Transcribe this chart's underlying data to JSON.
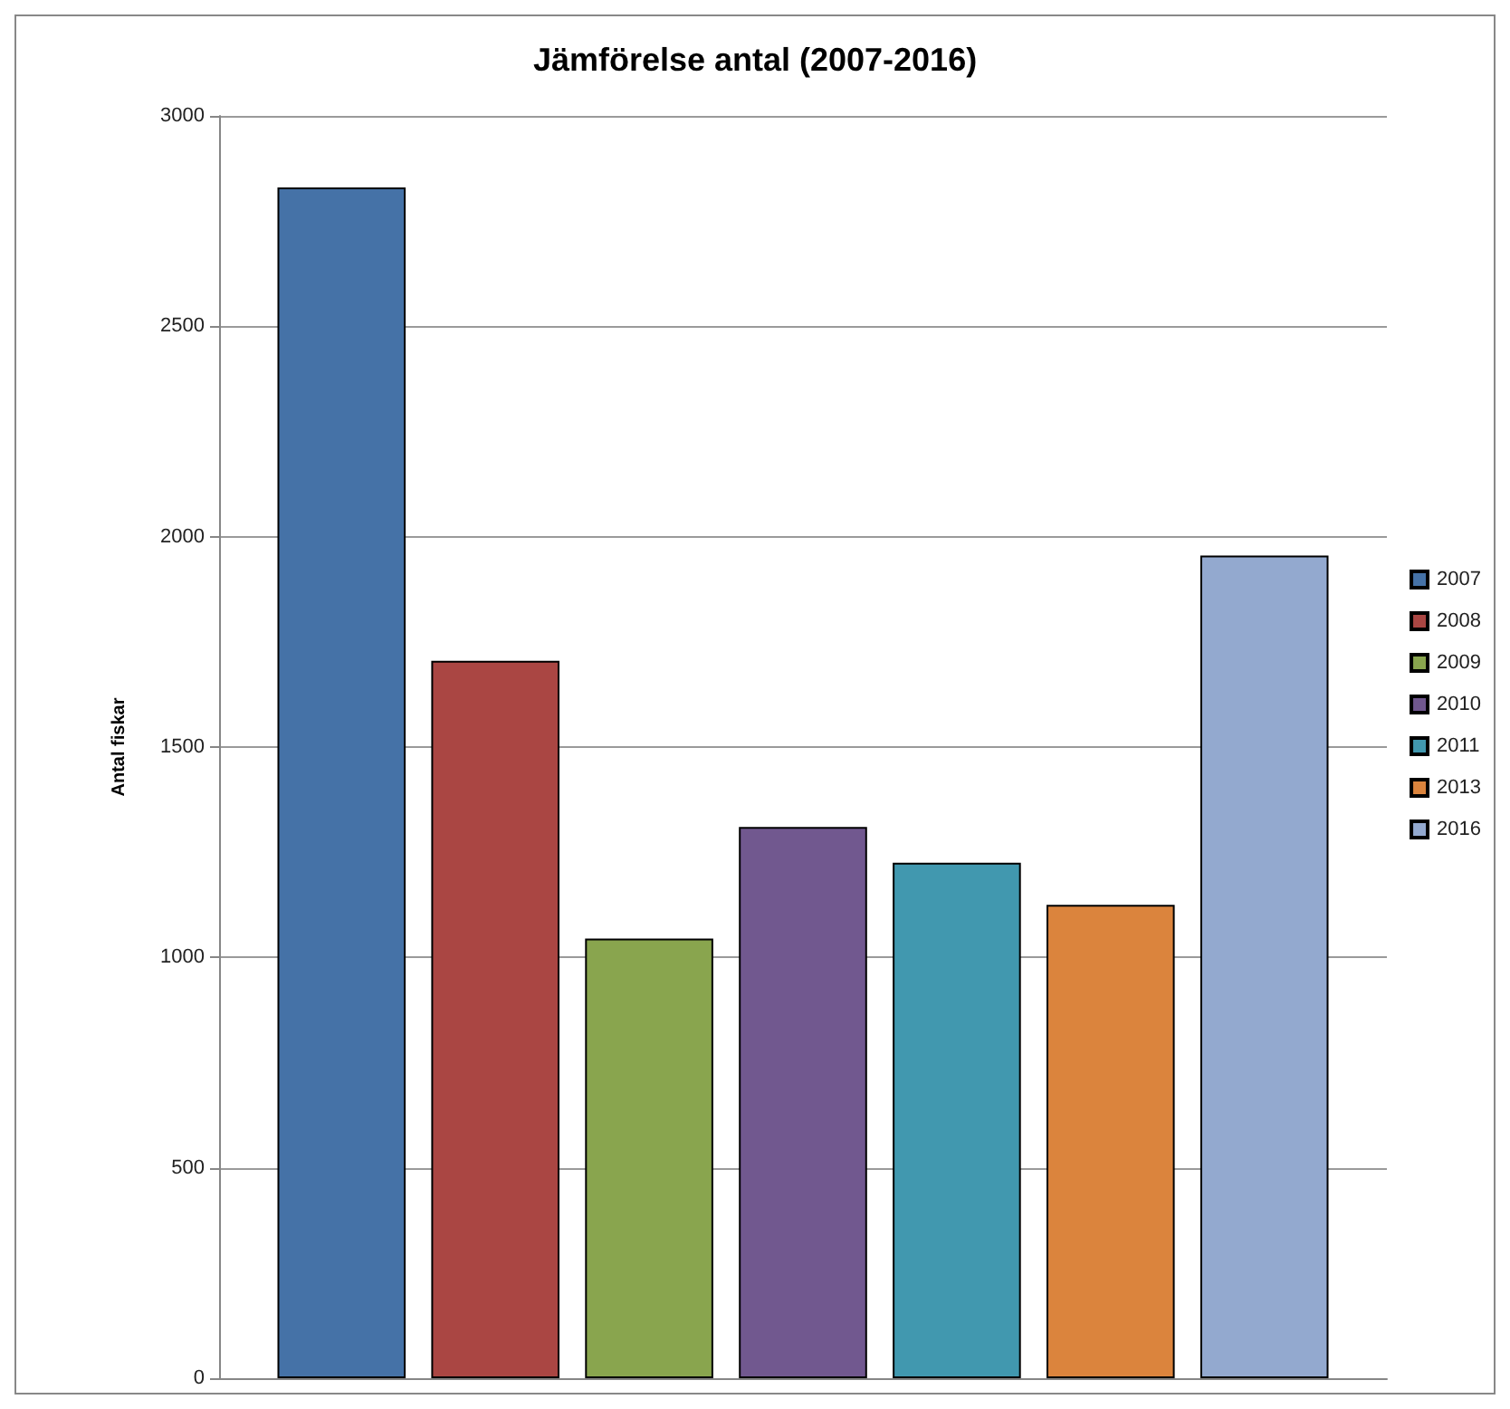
{
  "chart_data": {
    "type": "bar",
    "title": "Jämförelse antal (2007-2016)",
    "ylabel": "Antal fiskar",
    "categories": [
      null
    ],
    "series": [
      {
        "name": "2007",
        "color": "#4572a7",
        "values": [
          2830
        ]
      },
      {
        "name": "2008",
        "color": "#aa4643",
        "values": [
          1705
        ]
      },
      {
        "name": "2009",
        "color": "#89a54e",
        "values": [
          1045
        ]
      },
      {
        "name": "2010",
        "color": "#71588f",
        "values": [
          1310
        ]
      },
      {
        "name": "2011",
        "color": "#4198af",
        "values": [
          1225
        ]
      },
      {
        "name": "2013",
        "color": "#db843d",
        "values": [
          1125
        ]
      },
      {
        "name": "2016",
        "color": "#93a9cf",
        "values": [
          1955
        ]
      }
    ],
    "ylim": [
      0,
      3000
    ],
    "yticks": [
      0,
      500,
      1000,
      1500,
      2000,
      2500,
      3000
    ],
    "grid": "y",
    "legend": "right"
  }
}
